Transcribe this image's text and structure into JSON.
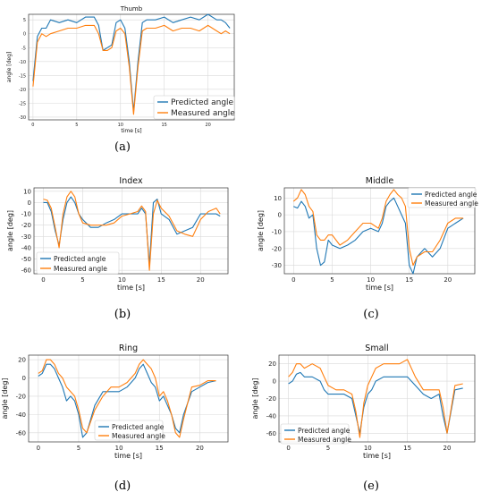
{
  "colors": {
    "predicted": "#1f77b4",
    "measured": "#ff7f0e",
    "grid": "#d9d9d9"
  },
  "captions": [
    "(a)",
    "(b)",
    "(c)",
    "(d)",
    "(e)"
  ],
  "chart_data": [
    {
      "type": "line",
      "title": "Thumb",
      "xlabel": "time [s]",
      "ylabel": "angle [deg]",
      "xlim": [
        -0.5,
        23
      ],
      "ylim": [
        -31,
        7
      ],
      "xticks": [
        0,
        5,
        10,
        15,
        20
      ],
      "yticks": [
        5,
        0,
        -5,
        -10,
        -15,
        -20,
        -25,
        -30
      ],
      "legend": "lower-right",
      "grid": true,
      "x": [
        0,
        0.5,
        1,
        1.5,
        2,
        3,
        4,
        5,
        6,
        7,
        7.5,
        8,
        8.5,
        9,
        9.5,
        10,
        10.5,
        11,
        11.5,
        12,
        12.5,
        13,
        14,
        15,
        16,
        17,
        18,
        19,
        20,
        21,
        21.5,
        22,
        22.5
      ],
      "series": [
        {
          "name": "Predicted angle",
          "values": [
            -17,
            -1,
            2,
            2,
            5,
            4,
            5,
            4,
            6,
            6,
            3,
            -6,
            -5,
            -4,
            4,
            5,
            2,
            -10,
            -28,
            -10,
            4,
            5,
            5,
            6,
            4,
            5,
            6,
            5,
            7,
            5,
            5,
            4,
            2
          ]
        },
        {
          "name": "Measured angle",
          "values": [
            -19,
            -3,
            0,
            -1,
            0,
            1,
            2,
            2,
            3,
            3,
            0,
            -6,
            -6,
            -5,
            1,
            2,
            0,
            -12,
            -29,
            -12,
            1,
            2,
            2,
            3,
            1,
            2,
            2,
            1,
            3,
            1,
            0,
            1,
            0
          ]
        }
      ]
    },
    {
      "type": "line",
      "title": "Index",
      "xlabel": "time [s]",
      "ylabel": "angle [deg]",
      "xlim": [
        -1.2,
        23.5
      ],
      "ylim": [
        -63,
        13
      ],
      "xticks": [
        0,
        5,
        10,
        15,
        20
      ],
      "yticks": [
        10,
        0,
        -10,
        -20,
        -30,
        -40,
        -50,
        -60
      ],
      "legend": "lower-left",
      "grid": true,
      "x": [
        0,
        0.5,
        1,
        1.5,
        2,
        2.5,
        3,
        3.5,
        4,
        4.5,
        5,
        6,
        7,
        8,
        9,
        10,
        11,
        12,
        12.5,
        13,
        13.5,
        14,
        14.5,
        15,
        16,
        17,
        18,
        19,
        20,
        21,
        22,
        22.5
      ],
      "series": [
        {
          "name": "Predicted angle",
          "values": [
            0,
            0,
            -8,
            -25,
            -38,
            -15,
            0,
            5,
            0,
            -10,
            -15,
            -22,
            -22,
            -18,
            -15,
            -10,
            -10,
            -10,
            -5,
            -10,
            -55,
            0,
            3,
            -10,
            -15,
            -28,
            -25,
            -22,
            -10,
            -10,
            -10,
            -12
          ]
        },
        {
          "name": "Measured angle",
          "values": [
            3,
            2,
            -5,
            -22,
            -40,
            -10,
            5,
            10,
            5,
            -10,
            -18,
            -20,
            -20,
            -20,
            -18,
            -12,
            -10,
            -8,
            -3,
            -8,
            -60,
            -10,
            2,
            -5,
            -12,
            -25,
            -28,
            -30,
            -15,
            -8,
            -5,
            -10
          ]
        }
      ]
    },
    {
      "type": "line",
      "title": "Middle",
      "xlabel": "time [s]",
      "ylabel": "angle [deg]",
      "xlim": [
        -1.2,
        23.5
      ],
      "ylim": [
        -35,
        16
      ],
      "xticks": [
        0,
        5,
        10,
        15,
        20
      ],
      "yticks": [
        10,
        0,
        -10,
        -20,
        -30
      ],
      "legend": "top-right",
      "grid": true,
      "x": [
        0,
        0.5,
        1,
        1.5,
        2,
        2.5,
        3,
        3.5,
        4,
        4.5,
        5,
        6,
        7,
        8,
        9,
        10,
        11,
        11.5,
        12,
        12.5,
        13,
        13.5,
        14,
        14.5,
        15,
        15.5,
        16,
        17,
        18,
        19,
        20,
        21,
        22
      ],
      "series": [
        {
          "name": "Predicted angle",
          "values": [
            5,
            4,
            8,
            5,
            -2,
            0,
            -20,
            -30,
            -28,
            -15,
            -18,
            -20,
            -18,
            -15,
            -10,
            -8,
            -10,
            -5,
            5,
            8,
            10,
            5,
            0,
            -5,
            -30,
            -35,
            -25,
            -20,
            -25,
            -20,
            -8,
            -5,
            -2
          ]
        },
        {
          "name": "Measured angle",
          "values": [
            8,
            10,
            15,
            12,
            5,
            2,
            -12,
            -15,
            -15,
            -12,
            -12,
            -18,
            -15,
            -10,
            -5,
            -5,
            -8,
            -2,
            8,
            12,
            15,
            12,
            10,
            5,
            -20,
            -30,
            -25,
            -22,
            -22,
            -15,
            -5,
            -2,
            -2
          ]
        }
      ]
    },
    {
      "type": "line",
      "title": "Ring",
      "xlabel": "time [s]",
      "ylabel": "angle [deg]",
      "xlim": [
        -1.2,
        23.5
      ],
      "ylim": [
        -70,
        25
      ],
      "xticks": [
        0,
        5,
        10,
        15,
        20
      ],
      "yticks": [
        20,
        0,
        -20,
        -40,
        -60
      ],
      "legend": "bottom-center",
      "grid": true,
      "x": [
        0,
        0.5,
        1,
        1.5,
        2,
        2.5,
        3,
        3.5,
        4,
        4.5,
        5,
        5.5,
        6,
        7,
        8,
        9,
        10,
        11,
        12,
        12.5,
        13,
        13.5,
        14,
        14.5,
        15,
        15.5,
        16,
        16.5,
        17,
        17.5,
        18,
        19,
        20,
        21,
        22
      ],
      "series": [
        {
          "name": "Predicted angle",
          "values": [
            2,
            5,
            15,
            15,
            10,
            0,
            -10,
            -25,
            -20,
            -25,
            -40,
            -65,
            -60,
            -30,
            -15,
            -15,
            -15,
            -10,
            0,
            10,
            15,
            5,
            -5,
            -10,
            -25,
            -20,
            -30,
            -40,
            -55,
            -60,
            -40,
            -15,
            -10,
            -5,
            -3
          ]
        },
        {
          "name": "Measured angle",
          "values": [
            5,
            8,
            20,
            20,
            15,
            5,
            0,
            -10,
            -15,
            -20,
            -35,
            -55,
            -60,
            -35,
            -20,
            -10,
            -10,
            -5,
            5,
            15,
            20,
            15,
            10,
            0,
            -20,
            -15,
            -25,
            -40,
            -60,
            -65,
            -45,
            -10,
            -8,
            -3,
            -3
          ]
        }
      ]
    },
    {
      "type": "line",
      "title": "Small",
      "xlabel": "time [s]",
      "ylabel": "angle [deg]",
      "xlim": [
        -1.2,
        23.5
      ],
      "ylim": [
        -70,
        30
      ],
      "xticks": [
        0,
        5,
        10,
        15,
        20
      ],
      "yticks": [
        20,
        0,
        -20,
        -40,
        -60
      ],
      "legend": "lower-left",
      "grid": true,
      "x": [
        0,
        0.5,
        1,
        1.5,
        2,
        3,
        4,
        4.5,
        5,
        6,
        7,
        8,
        8.5,
        9,
        9.5,
        10,
        10.5,
        11,
        12,
        13,
        14,
        15,
        16,
        17,
        18,
        19,
        19.5,
        20,
        21,
        22
      ],
      "series": [
        {
          "name": "Predicted angle",
          "values": [
            -3,
            0,
            8,
            10,
            5,
            5,
            0,
            -10,
            -15,
            -15,
            -15,
            -20,
            -40,
            -60,
            -30,
            -15,
            -10,
            0,
            5,
            5,
            5,
            5,
            -5,
            -15,
            -20,
            -15,
            -40,
            -60,
            -10,
            -8
          ]
        },
        {
          "name": "Measured angle",
          "values": [
            5,
            10,
            20,
            20,
            15,
            20,
            15,
            5,
            -5,
            -10,
            -10,
            -15,
            -35,
            -65,
            -25,
            -5,
            5,
            15,
            20,
            20,
            20,
            25,
            5,
            -10,
            -10,
            -10,
            -30,
            -60,
            -5,
            -3
          ]
        }
      ]
    }
  ]
}
